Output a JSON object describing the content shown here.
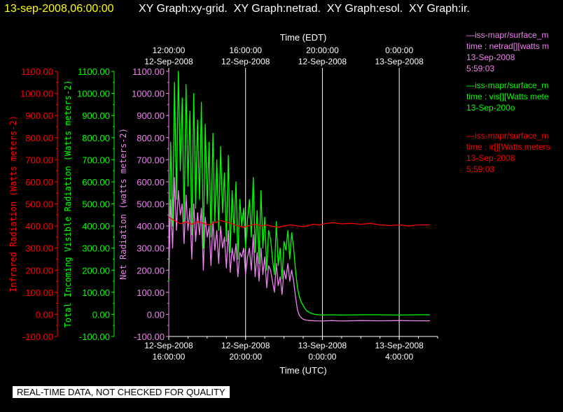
{
  "header": {
    "timestamp": "13-sep-2008,06:00:00",
    "graphs": "XY Graph:xy-grid.  XY Graph:netrad.  XY Graph:esol.  XY Graph:ir."
  },
  "banner": "REAL-TIME DATA, NOT CHECKED FOR QUALITY",
  "legend": [
    {
      "name": "—iss-mapr/surface_m",
      "line2": "time : netrad[][watts m",
      "line3": "13-Sep-2008",
      "line4": "5:59:03",
      "color": "#ee82ee"
    },
    {
      "name": "—iss-mapr/surface_m",
      "line2": "time : vis[][Watts mete",
      "line3": "13-Sep-200o",
      "line4": "",
      "color": "#00ff00"
    },
    {
      "name": "—iss-mapr/surface_m",
      "line2": "time : ir[][Watts meters",
      "line3": "13-Sep-2008",
      "line4": "5:59:03",
      "color": "#ff0000"
    }
  ],
  "chart_data": {
    "type": "line",
    "x_top_label": "Time (EDT)",
    "x_bottom_label": "Time (UTC)",
    "x_range_hours_utc": [
      16,
      30
    ],
    "x_ticks": [
      {
        "pos_utc": 16,
        "top": [
          "12:00:00",
          "12-Sep-2008"
        ],
        "bottom": [
          "12-Sep-2008",
          "16:00:00"
        ]
      },
      {
        "pos_utc": 20,
        "top": [
          "16:00:00",
          "12-Sep-2008"
        ],
        "bottom": [
          "12-Sep-2008",
          "20:00:00"
        ]
      },
      {
        "pos_utc": 24,
        "top": [
          "20:00:00",
          "12-Sep-2008"
        ],
        "bottom": [
          "13-Sep-2008",
          "0:00:00"
        ]
      },
      {
        "pos_utc": 28,
        "top": [
          "0:00:00",
          "13-Sep-2008"
        ],
        "bottom": [
          "13-Sep-2008",
          "4:00:00"
        ]
      }
    ],
    "ylim": [
      -100,
      1100
    ],
    "y_ticks": [
      "-100.00",
      "0.00",
      "100.00",
      "200.00",
      "300.00",
      "400.00",
      "500.00",
      "600.00",
      "700.00",
      "800.00",
      "900.00",
      "1000.00",
      "1100.00"
    ],
    "axes": [
      {
        "label": "Infrared Radiation (Watts meters-2)",
        "color": "#ff0000"
      },
      {
        "label": "Total Incoming Visible Radiation (Watts meters-2)",
        "color": "#00ff00"
      },
      {
        "label": "Net Radiation (watts meters-2)",
        "color": "#ee82ee"
      }
    ],
    "series": [
      {
        "color": "#00ff00",
        "x": [
          16.0,
          16.1,
          16.2,
          16.3,
          16.4,
          16.5,
          16.6,
          16.7,
          16.8,
          16.9,
          17.0,
          17.1,
          17.2,
          17.3,
          17.4,
          17.5,
          17.6,
          17.7,
          17.8,
          17.9,
          18.0,
          18.1,
          18.2,
          18.3,
          18.4,
          18.5,
          18.6,
          18.7,
          18.8,
          18.9,
          19.0,
          19.1,
          19.2,
          19.3,
          19.4,
          19.5,
          19.6,
          19.7,
          19.8,
          19.9,
          20.0,
          20.1,
          20.2,
          20.3,
          20.4,
          20.5,
          20.6,
          20.7,
          20.8,
          20.9,
          21.0,
          21.1,
          21.2,
          21.3,
          21.4,
          21.5,
          21.6,
          21.7,
          21.8,
          21.9,
          22.0,
          22.1,
          22.2,
          22.3,
          22.4,
          22.5,
          22.6,
          22.7,
          22.8,
          22.9,
          23.0,
          23.1,
          23.2,
          23.4,
          23.6,
          23.8,
          24.0,
          24.5,
          25.0,
          26.0,
          27.0,
          28.0,
          29.0,
          29.6
        ],
        "y": [
          150,
          780,
          400,
          1050,
          520,
          1100,
          650,
          980,
          420,
          1040,
          580,
          920,
          360,
          1000,
          480,
          880,
          520,
          960,
          300,
          860,
          500,
          780,
          350,
          820,
          420,
          700,
          380,
          760,
          460,
          640,
          330,
          720,
          280,
          560,
          370,
          600,
          250,
          520,
          400,
          480,
          300,
          430,
          520,
          350,
          620,
          280,
          470,
          230,
          560,
          300,
          440,
          200,
          380,
          340,
          250,
          180,
          420,
          220,
          300,
          160,
          330,
          290,
          380,
          250,
          370,
          300,
          200,
          120,
          80,
          55,
          40,
          25,
          15,
          5,
          0,
          -2,
          -3,
          -2,
          -3,
          -2,
          -2,
          -3,
          -2,
          -2
        ]
      },
      {
        "color": "#ee82ee",
        "x": [
          16.0,
          16.1,
          16.2,
          16.3,
          16.4,
          16.5,
          16.6,
          16.7,
          16.8,
          16.9,
          17.0,
          17.1,
          17.2,
          17.3,
          17.4,
          17.5,
          17.6,
          17.7,
          17.8,
          17.9,
          18.0,
          18.1,
          18.2,
          18.3,
          18.4,
          18.5,
          18.6,
          18.7,
          18.8,
          18.9,
          19.0,
          19.1,
          19.2,
          19.3,
          19.4,
          19.5,
          19.6,
          19.7,
          19.8,
          19.9,
          20.0,
          20.1,
          20.2,
          20.3,
          20.4,
          20.5,
          20.6,
          20.7,
          20.8,
          20.9,
          21.0,
          21.1,
          21.2,
          21.3,
          21.4,
          21.5,
          21.6,
          21.7,
          21.8,
          21.9,
          22.0,
          22.1,
          22.2,
          22.3,
          22.4,
          22.5,
          22.6,
          22.7,
          22.8,
          22.9,
          23.0,
          23.1,
          23.2,
          23.4,
          23.6,
          23.8,
          24.0,
          24.5,
          25.0,
          26.0,
          27.0,
          28.0,
          29.0,
          29.6
        ],
        "y": [
          160,
          520,
          300,
          620,
          380,
          560,
          450,
          500,
          320,
          540,
          380,
          480,
          250,
          500,
          330,
          460,
          360,
          480,
          200,
          440,
          350,
          400,
          220,
          420,
          290,
          380,
          230,
          400,
          300,
          350,
          210,
          380,
          190,
          300,
          240,
          320,
          170,
          280,
          260,
          300,
          180,
          260,
          300,
          200,
          360,
          170,
          280,
          150,
          300,
          180,
          260,
          120,
          220,
          200,
          150,
          100,
          230,
          130,
          170,
          90,
          200,
          160,
          230,
          150,
          200,
          150,
          80,
          20,
          -5,
          -15,
          -22,
          -25,
          -27,
          -28,
          -29,
          -30,
          -30,
          -28,
          -30,
          -28,
          -29,
          -28,
          -29,
          -29
        ]
      },
      {
        "color": "#ff0000",
        "x": [
          16.0,
          16.3,
          16.6,
          16.9,
          17.2,
          17.5,
          17.8,
          18.1,
          18.4,
          18.7,
          19.0,
          19.3,
          19.6,
          19.9,
          20.2,
          20.5,
          20.8,
          21.1,
          21.4,
          21.7,
          22.0,
          22.3,
          22.6,
          22.9,
          23.2,
          23.5,
          23.8,
          24.1,
          24.5,
          25.0,
          25.5,
          26.0,
          26.5,
          27.0,
          27.5,
          28.0,
          28.5,
          29.0,
          29.6
        ],
        "y": [
          440,
          425,
          410,
          418,
          408,
          420,
          412,
          405,
          415,
          425,
          418,
          410,
          400,
          395,
          402,
          408,
          400,
          405,
          398,
          395,
          400,
          405,
          402,
          398,
          400,
          408,
          405,
          410,
          415,
          410,
          412,
          408,
          412,
          405,
          402,
          405,
          400,
          405,
          405
        ]
      }
    ]
  }
}
